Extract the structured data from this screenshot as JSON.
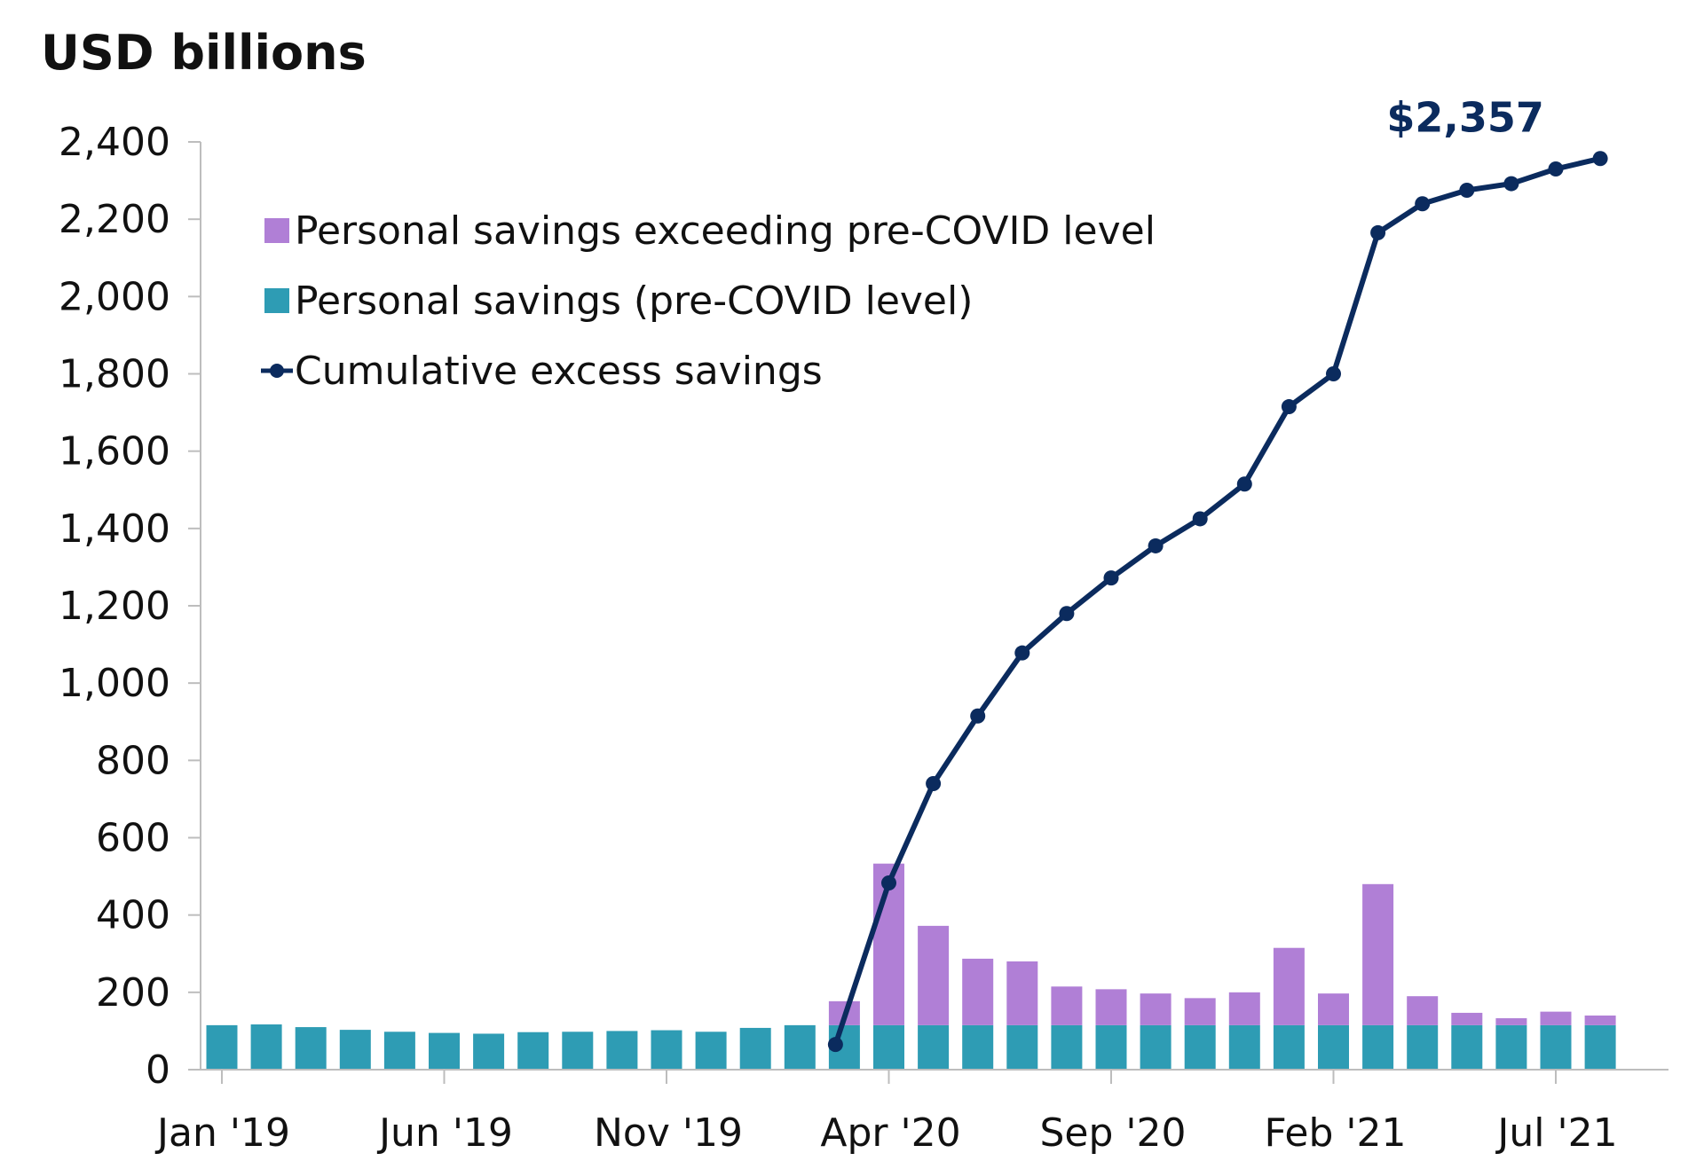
{
  "colors": {
    "excess": "#b07fd6",
    "base": "#2e9cb4",
    "line": "#0b2b5e",
    "axis": "#bdbdbd"
  },
  "chart_data": {
    "type": "bar",
    "title": "USD billions",
    "xlabel": "",
    "ylabel": "USD billions",
    "ylim": [
      0,
      2400
    ],
    "yticks": [
      0,
      200,
      400,
      600,
      800,
      1000,
      1200,
      1400,
      1600,
      1800,
      2000,
      2200,
      2400
    ],
    "ytick_labels": [
      "0",
      "200",
      "400",
      "600",
      "800",
      "1,000",
      "1,200",
      "1,400",
      "1,600",
      "1,800",
      "2,000",
      "2,200",
      "2,400"
    ],
    "months": [
      "Jan '19",
      "Feb '19",
      "Mar '19",
      "Apr '19",
      "May '19",
      "Jun '19",
      "Jul '19",
      "Aug '19",
      "Sep '19",
      "Oct '19",
      "Nov '19",
      "Dec '19",
      "Jan '20",
      "Feb '20",
      "Mar '20",
      "Apr '20",
      "May '20",
      "Jun '20",
      "Jul '20",
      "Aug '20",
      "Sep '20",
      "Oct '20",
      "Nov '20",
      "Dec '20",
      "Jan '21",
      "Feb '21",
      "Mar '21",
      "Apr '21",
      "May '21",
      "Jun '21",
      "Jul '21",
      "Aug '21"
    ],
    "x_tick_labels": [
      {
        "index": 0,
        "label": "Jan '19"
      },
      {
        "index": 5,
        "label": "Jun '19"
      },
      {
        "index": 10,
        "label": "Nov '19"
      },
      {
        "index": 15,
        "label": "Apr '20"
      },
      {
        "index": 20,
        "label": "Sep '20"
      },
      {
        "index": 25,
        "label": "Feb '21"
      },
      {
        "index": 30,
        "label": "Jul '21"
      }
    ],
    "series": [
      {
        "name": "Personal savings (pre-COVID level)",
        "kind": "bar",
        "values": [
          115,
          117,
          110,
          103,
          98,
          95,
          93,
          97,
          98,
          100,
          102,
          98,
          108,
          115,
          115,
          115,
          115,
          115,
          115,
          115,
          115,
          115,
          115,
          115,
          115,
          115,
          115,
          115,
          115,
          115,
          115,
          115
        ]
      },
      {
        "name": "Personal savings exceeding pre-COVID level",
        "kind": "bar-stacked",
        "values": [
          0,
          0,
          0,
          0,
          0,
          0,
          0,
          0,
          0,
          0,
          0,
          0,
          0,
          0,
          62,
          418,
          257,
          172,
          165,
          100,
          93,
          82,
          70,
          85,
          200,
          82,
          365,
          75,
          32,
          18,
          35,
          25
        ]
      },
      {
        "name": "Cumulative excess savings",
        "kind": "line",
        "start_index": 14,
        "values": [
          65,
          483,
          740,
          915,
          1078,
          1180,
          1272,
          1355,
          1425,
          1515,
          1715,
          1800,
          2165,
          2240,
          2275,
          2292,
          2330,
          2357
        ]
      }
    ],
    "legend": [
      {
        "label": "Personal savings exceeding pre-COVID level",
        "marker": "square-excess"
      },
      {
        "label": "Personal savings (pre-COVID level)",
        "marker": "square-base"
      },
      {
        "label": "Cumulative excess savings",
        "marker": "line-dot"
      }
    ],
    "legend_position": "top-left",
    "annotation": {
      "text": "$2,357"
    }
  }
}
